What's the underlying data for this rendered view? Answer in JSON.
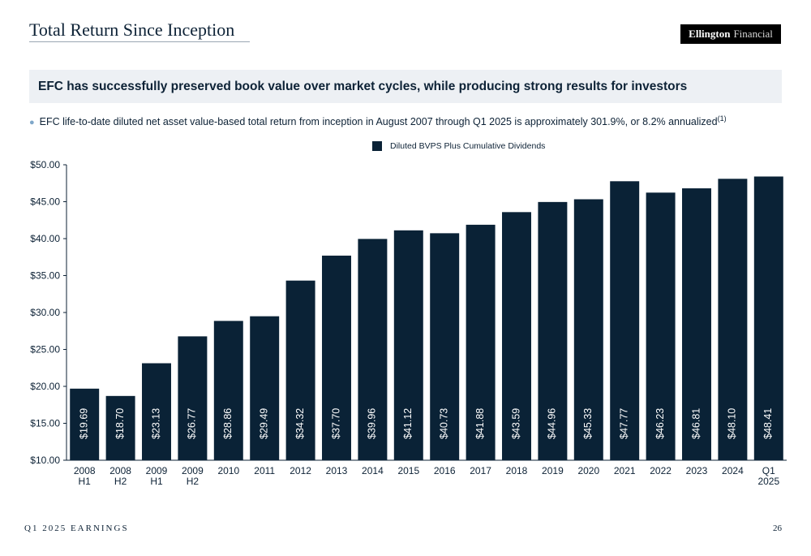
{
  "header": {
    "title": "Total Return Since Inception",
    "logo_strong": "Ellington",
    "logo_light": "Financial"
  },
  "banner": {
    "text": "EFC has successfully preserved book value over market cycles, while producing strong results for investors"
  },
  "bullet": {
    "text": "EFC life-to-date diluted net asset value-based total return from inception in August 2007 through Q1 2025 is approximately 301.9%, or 8.2% annualized",
    "footnote": "(1)"
  },
  "footer": {
    "left": "Q1 2025 EARNINGS",
    "page": "26"
  },
  "colors": {
    "bar": "#0a2236",
    "banner_bg": "#edf0f4",
    "bullet": "#7fa7c9"
  },
  "chart_data": {
    "type": "bar",
    "categories": [
      [
        "2008",
        "H1"
      ],
      [
        "2008",
        "H2"
      ],
      [
        "2009",
        "H1"
      ],
      [
        "2009",
        "H2"
      ],
      [
        "2010"
      ],
      [
        "2011"
      ],
      [
        "2012"
      ],
      [
        "2013"
      ],
      [
        "2014"
      ],
      [
        "2015"
      ],
      [
        "2016"
      ],
      [
        "2017"
      ],
      [
        "2018"
      ],
      [
        "2019"
      ],
      [
        "2020"
      ],
      [
        "2021"
      ],
      [
        "2022"
      ],
      [
        "2023"
      ],
      [
        "2024"
      ],
      [
        "Q1",
        "2025"
      ]
    ],
    "series": [
      {
        "name": "Diluted BVPS Plus Cumulative Dividends",
        "values": [
          19.69,
          18.7,
          23.13,
          26.77,
          28.86,
          29.49,
          34.32,
          37.7,
          39.96,
          41.12,
          40.73,
          41.88,
          43.59,
          44.96,
          45.33,
          47.77,
          46.23,
          46.81,
          48.1,
          48.41
        ],
        "labels": [
          "$19.69",
          "$18.70",
          "$23.13",
          "$26.77",
          "$28.86",
          "$29.49",
          "$34.32",
          "$37.70",
          "$39.96",
          "$41.12",
          "$40.73",
          "$41.88",
          "$43.59",
          "$44.96",
          "$45.33",
          "$47.77",
          "$46.23",
          "$46.81",
          "$48.10",
          "$48.41"
        ]
      }
    ],
    "ylim": [
      10,
      50
    ],
    "yticks": [
      10,
      15,
      20,
      25,
      30,
      35,
      40,
      45,
      50
    ],
    "ytick_labels": [
      "$10.00",
      "$15.00",
      "$20.00",
      "$25.00",
      "$30.00",
      "$35.00",
      "$40.00",
      "$45.00",
      "$50.00"
    ],
    "legend": "top-center",
    "grid": false
  }
}
